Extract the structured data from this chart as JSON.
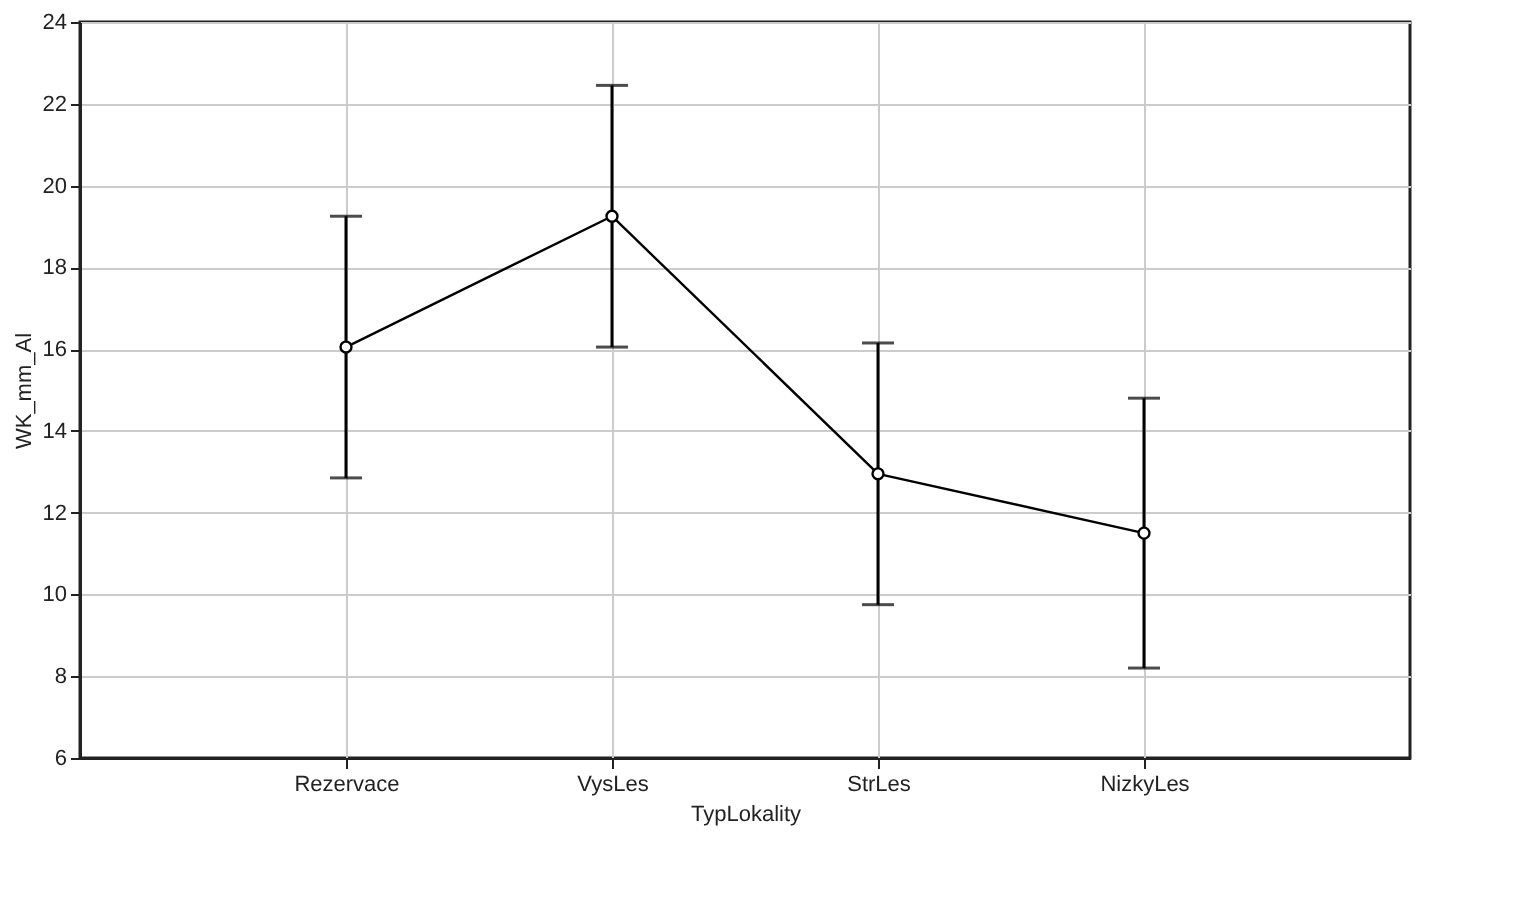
{
  "chart_data": {
    "type": "line",
    "xlabel": "TypLokality",
    "ylabel": "WK_mm_Al",
    "categories": [
      "Rezervace",
      "VysLes",
      "StrLes",
      "NizkyLes"
    ],
    "series": [
      {
        "color": "#000000",
        "values": [
          16.05,
          19.25,
          12.95,
          11.5
        ],
        "errors": [
          3.2,
          3.2,
          3.2,
          3.3
        ]
      }
    ],
    "ylim": [
      6,
      24
    ],
    "yticks": [
      6,
      8,
      10,
      12,
      14,
      16,
      18,
      20,
      22,
      24
    ],
    "grid": true,
    "marker": "circle",
    "line_style": "solid"
  }
}
